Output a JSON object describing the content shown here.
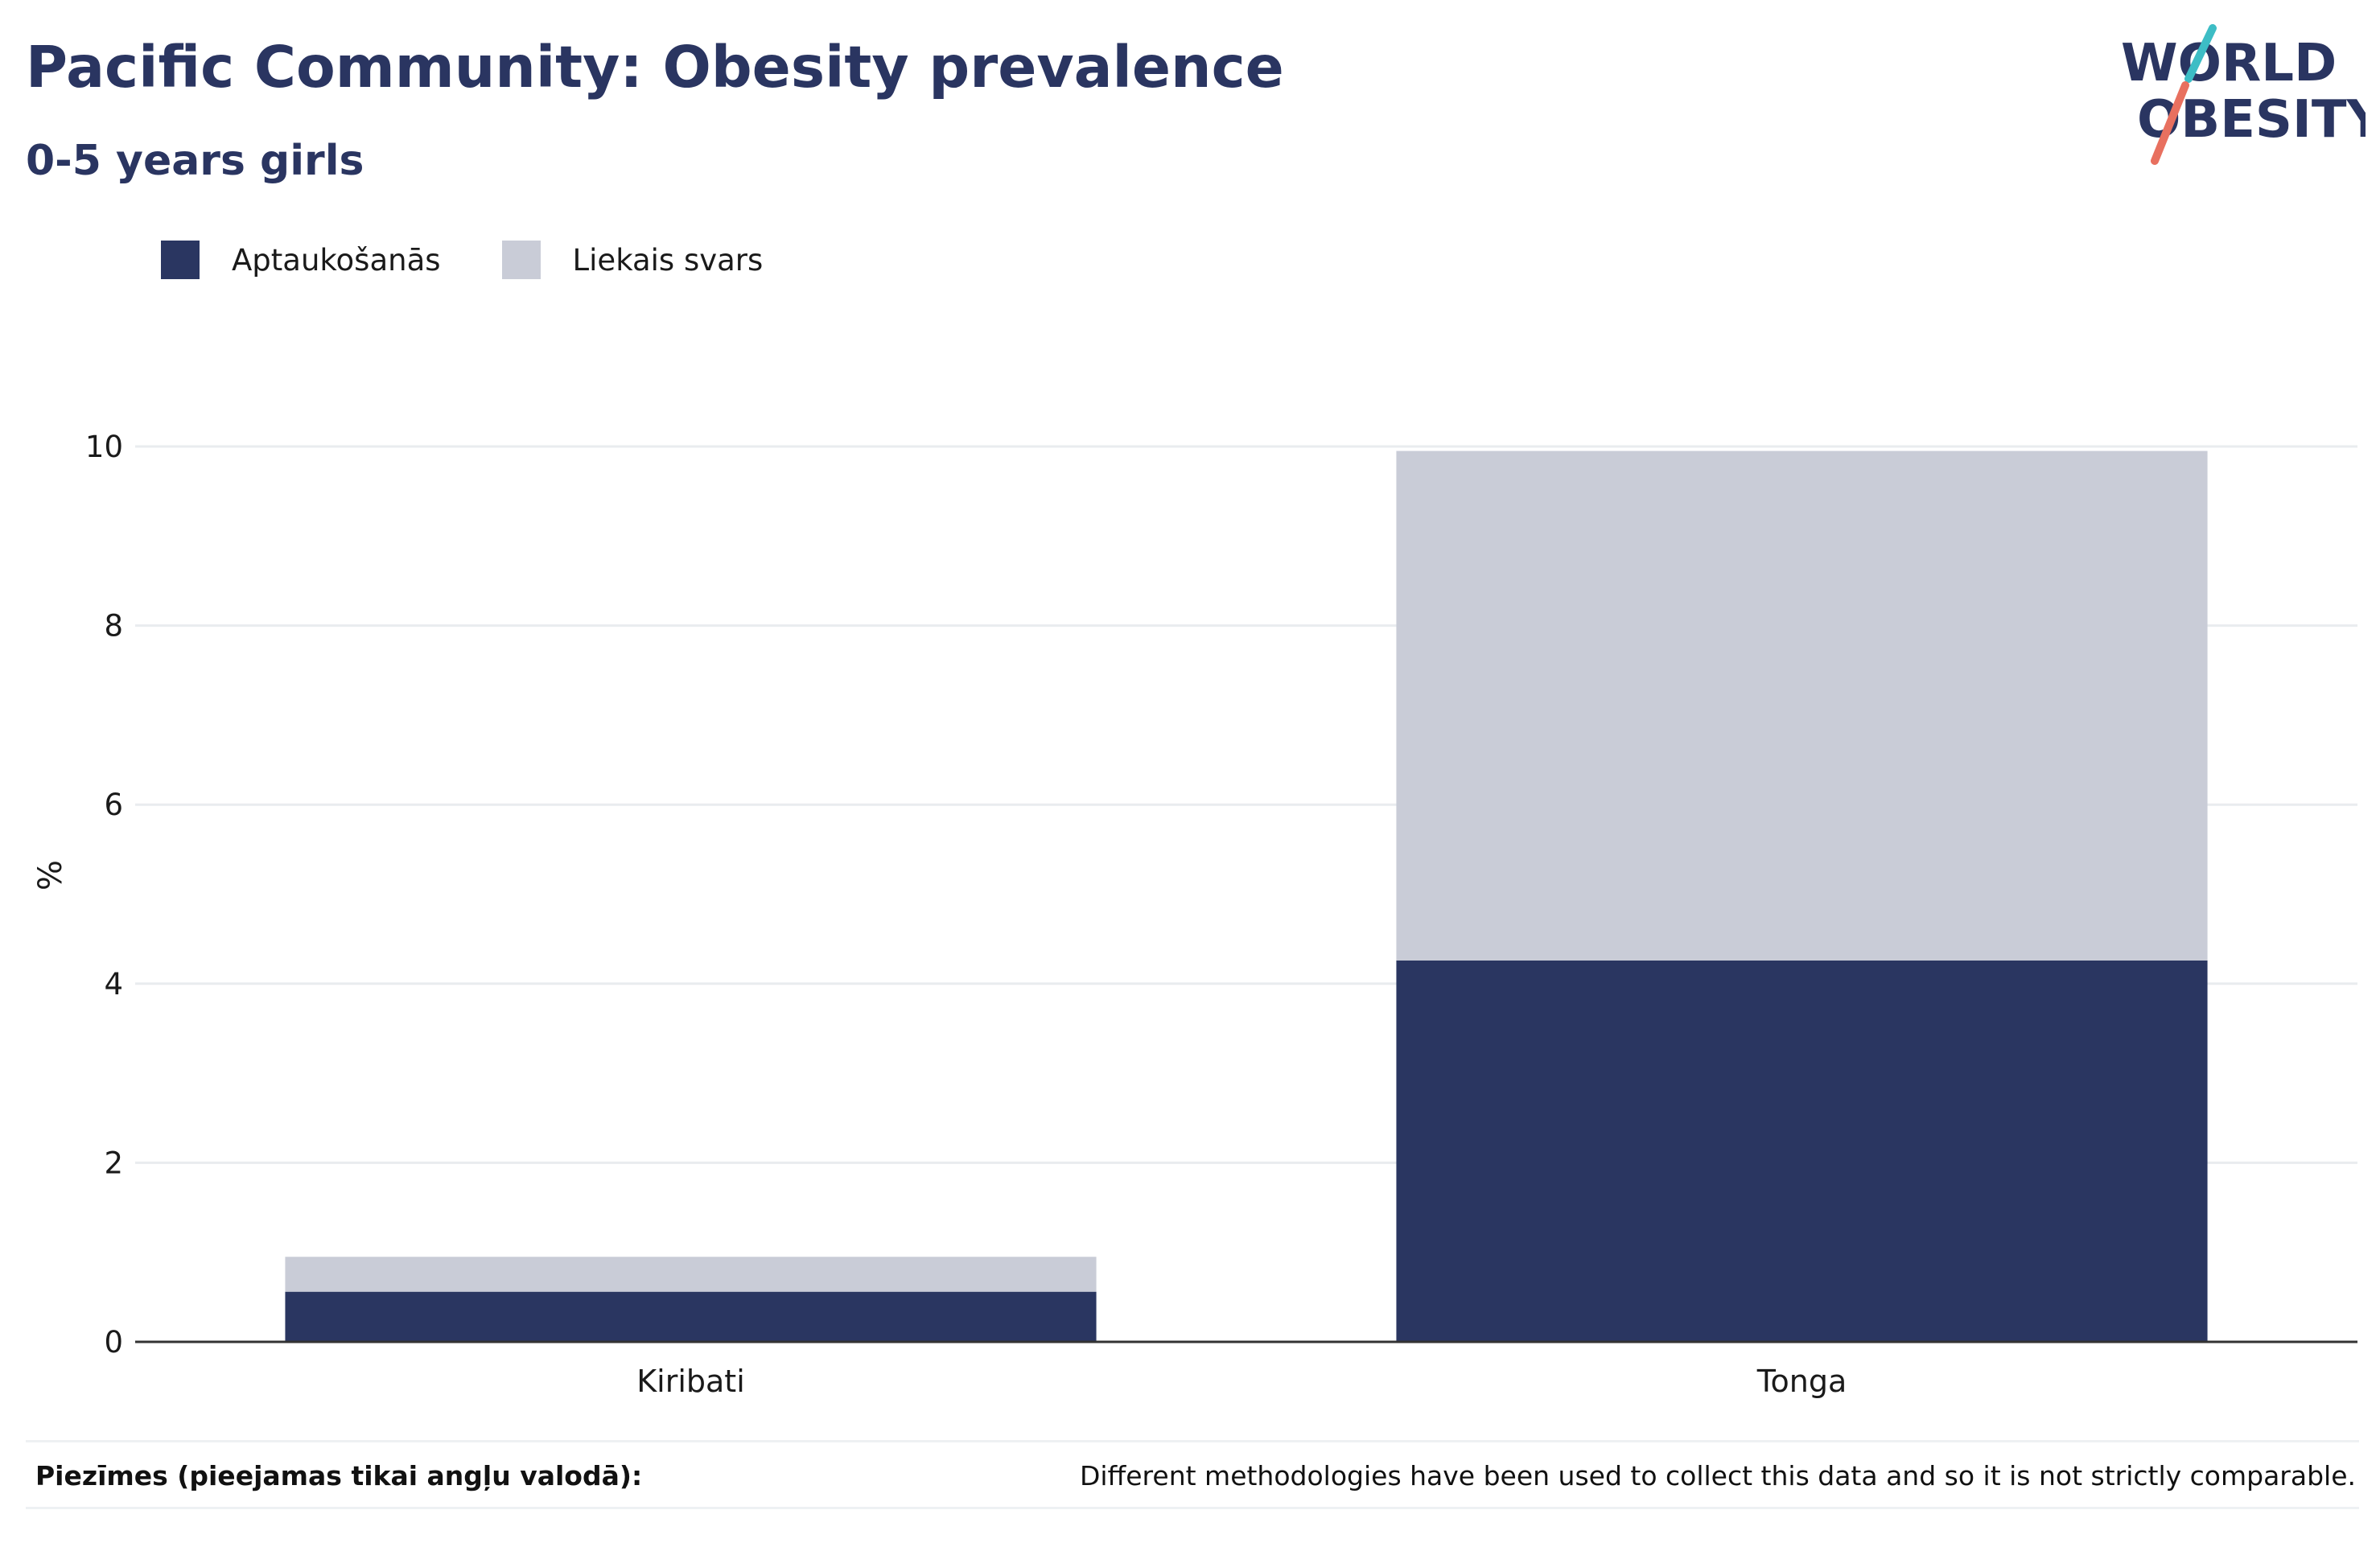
{
  "header": {
    "title": "Pacific Community: Obesity prevalence",
    "subtitle": "0-5 years girls"
  },
  "logo": {
    "line1": "WORLD",
    "line2": "OBESITY",
    "icon": "world-obesity-logo"
  },
  "colors": {
    "obesity": "#2a3661",
    "overweight": "#c9ccd7",
    "text": "#2a3561",
    "grid": "#e9ecef",
    "axis": "#333333",
    "logo_teal": "#3dbdc5",
    "logo_coral": "#e8705f"
  },
  "chart_data": {
    "type": "bar",
    "stacked": true,
    "categories": [
      "Kiribati",
      "Tonga"
    ],
    "series": [
      {
        "name": "Aptaukošanās",
        "values": [
          0.56,
          4.26
        ]
      },
      {
        "name": "Liekais svars",
        "values": [
          0.39,
          5.69
        ]
      }
    ],
    "ylabel": "%",
    "xlabel": "",
    "ylim": [
      0,
      10
    ],
    "yticks": [
      0,
      2,
      4,
      6,
      8,
      10
    ],
    "grid": true,
    "legend_position": "top-left"
  },
  "notes": {
    "label": "Piezīmes (pieejamas tikai angļu valodā):",
    "text": "Different methodologies have been used to collect this data and so it is not strictly comparable."
  }
}
